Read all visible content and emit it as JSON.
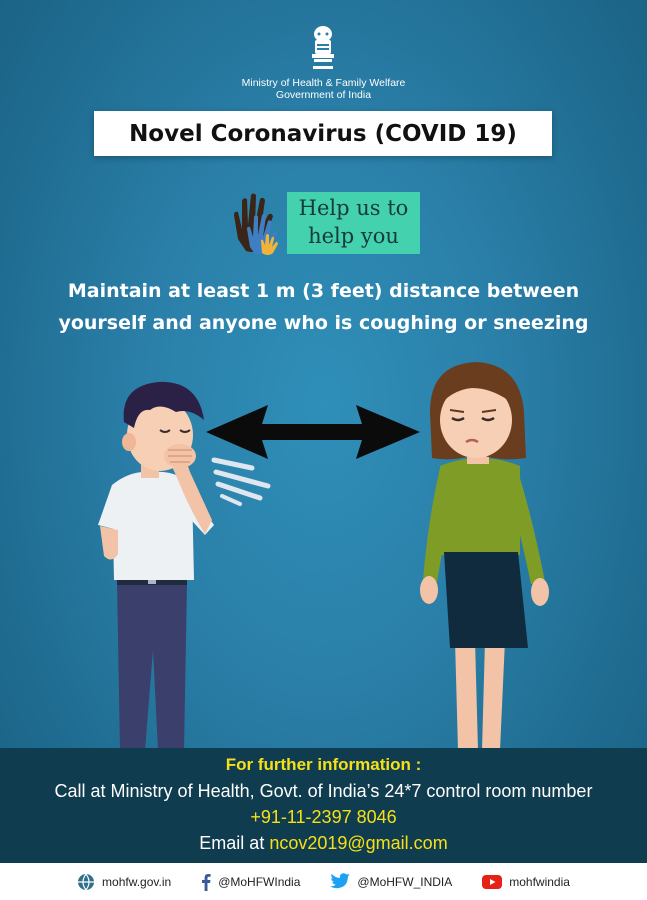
{
  "header": {
    "ministry_line1": "Ministry of Health & Family Welfare",
    "ministry_line2": "Government of India"
  },
  "title": "Novel Coronavirus (COVID 19)",
  "help_badge": {
    "line1": "Help us to",
    "line2": "help you"
  },
  "message": {
    "line1": "Maintain at least 1 m (3 feet) distance between",
    "line2": "yourself and anyone who is coughing or sneezing"
  },
  "info": {
    "heading": "For further information :",
    "call_text": "Call at Ministry of Health, Govt. of India’s  24*7 control room number",
    "phone": "+91-11-2397 8046",
    "email_prefix": "Email at ",
    "email": "ncov2019@gmail.com"
  },
  "footer": {
    "website": "mohfw.gov.in",
    "facebook": "@MoHFWIndia",
    "twitter": "@MoHFW_INDIA",
    "youtube": "mohfwindia"
  },
  "colors": {
    "background": "#2a7fa8",
    "info_band": "#0f3c4f",
    "highlight_yellow": "#f7e017",
    "help_badge": "#43d1ae"
  }
}
